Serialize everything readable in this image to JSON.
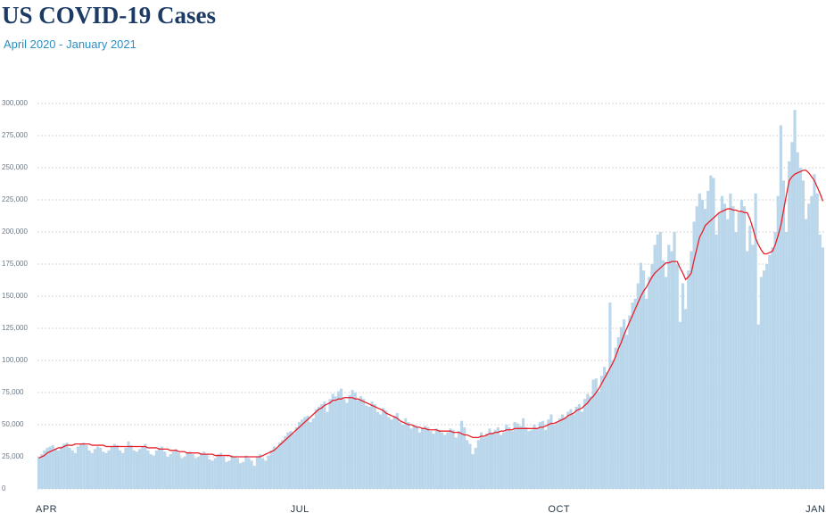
{
  "chart_data": {
    "type": "bar",
    "title": "US COVID-19 Cases",
    "subtitle": "April 2020 - January 2021",
    "categories": [
      "APR",
      null,
      null,
      null,
      null,
      null,
      null,
      null,
      null,
      null,
      null,
      null,
      null,
      null,
      null,
      null,
      null,
      null,
      null,
      null,
      null,
      null,
      null,
      null,
      null,
      null,
      null,
      null,
      null,
      null,
      null,
      null,
      null,
      null,
      null,
      null,
      null,
      null,
      null,
      null,
      null,
      null,
      null,
      null,
      null,
      null,
      null,
      null,
      null,
      null,
      null,
      null,
      null,
      null,
      null,
      null,
      null,
      null,
      null,
      null,
      null,
      null,
      null,
      null,
      null,
      null,
      null,
      null,
      null,
      null,
      null,
      null,
      null,
      null,
      null,
      null,
      null,
      null,
      null,
      null,
      null,
      null,
      null,
      null,
      null,
      null,
      null,
      null,
      null,
      null,
      null,
      "JUL",
      null,
      null,
      null,
      null,
      null,
      null,
      null,
      null,
      null,
      null,
      null,
      null,
      null,
      null,
      null,
      null,
      null,
      null,
      null,
      null,
      null,
      null,
      null,
      null,
      null,
      null,
      null,
      null,
      null,
      null,
      null,
      null,
      null,
      null,
      null,
      null,
      null,
      null,
      null,
      null,
      null,
      null,
      null,
      null,
      null,
      null,
      null,
      null,
      null,
      null,
      null,
      null,
      null,
      null,
      null,
      null,
      null,
      null,
      null,
      null,
      null,
      null,
      null,
      null,
      null,
      null,
      null,
      null,
      null,
      null,
      null,
      null,
      null,
      null,
      null,
      null,
      null,
      null,
      null,
      null,
      null,
      null,
      null,
      null,
      null,
      null,
      null,
      null,
      null,
      null,
      null,
      "OCT",
      null,
      null,
      null,
      null,
      null,
      null,
      null,
      null,
      null,
      null,
      null,
      null,
      null,
      null,
      null,
      null,
      null,
      null,
      null,
      null,
      null,
      null,
      null,
      null,
      null,
      null,
      null,
      null,
      null,
      null,
      null,
      null,
      null,
      null,
      null,
      null,
      null,
      null,
      null,
      null,
      null,
      null,
      null,
      null,
      null,
      null,
      null,
      null,
      null,
      null,
      null,
      null,
      null,
      null,
      null,
      null,
      null,
      null,
      null,
      null,
      null,
      null,
      null,
      null,
      null,
      null,
      null,
      null,
      null,
      null,
      null,
      null,
      null,
      null,
      null,
      null,
      null,
      null,
      null,
      null,
      null,
      null,
      null,
      null,
      null,
      null,
      null,
      null,
      null,
      null,
      null,
      "JAN",
      null,
      null,
      null,
      null,
      null
    ],
    "series": [
      {
        "type": "bar",
        "color": "#bad6ea",
        "values": [
          25000,
          27000,
          30000,
          32000,
          33000,
          34000,
          31000,
          30000,
          33000,
          35000,
          36000,
          32000,
          30000,
          28000,
          33000,
          35000,
          36000,
          34000,
          30000,
          28000,
          31000,
          33000,
          32000,
          29000,
          28000,
          30000,
          33000,
          35000,
          34000,
          30000,
          28000,
          32000,
          37000,
          34000,
          30000,
          29000,
          31000,
          33000,
          35000,
          30000,
          27000,
          26000,
          30000,
          32000,
          33000,
          29000,
          25000,
          27000,
          29000,
          31000,
          28000,
          24000,
          25000,
          28000,
          29000,
          27000,
          24000,
          25000,
          28000,
          29000,
          27000,
          23000,
          22000,
          24000,
          27000,
          28000,
          25000,
          21000,
          22000,
          26000,
          25000,
          24000,
          20000,
          21000,
          26000,
          24000,
          22000,
          18000,
          25000,
          27000,
          24000,
          22000,
          26000,
          30000,
          33000,
          32000,
          36000,
          38000,
          41000,
          44000,
          45000,
          43000,
          48000,
          52000,
          54000,
          56000,
          57000,
          52000,
          55000,
          62000,
          64000,
          66000,
          68000,
          60000,
          70000,
          74000,
          72000,
          76000,
          78000,
          70000,
          67000,
          73000,
          77000,
          75000,
          69000,
          72000,
          70000,
          65000,
          64000,
          68000,
          66000,
          60000,
          58000,
          63000,
          61000,
          56000,
          54000,
          57000,
          59000,
          52000,
          50000,
          55000,
          52000,
          47000,
          50000,
          49000,
          44000,
          47000,
          49000,
          48000,
          45000,
          43000,
          47000,
          46000,
          44000,
          42000,
          44000,
          47000,
          46000,
          40000,
          45000,
          53000,
          48000,
          38000,
          35000,
          27000,
          32000,
          38000,
          44000,
          40000,
          43000,
          47000,
          44000,
          46000,
          48000,
          42000,
          44000,
          50000,
          48000,
          45000,
          52000,
          51000,
          49000,
          55000,
          48000,
          45000,
          46000,
          50000,
          47000,
          52000,
          53000,
          46000,
          54000,
          58000,
          50000,
          52000,
          55000,
          58000,
          56000,
          60000,
          62000,
          58000,
          64000,
          66000,
          60000,
          70000,
          74000,
          72000,
          85000,
          86000,
          76000,
          88000,
          95000,
          91000,
          145000,
          100000,
          110000,
          118000,
          126000,
          132000,
          120000,
          135000,
          145000,
          148000,
          160000,
          176000,
          170000,
          148000,
          165000,
          175000,
          190000,
          198000,
          200000,
          178000,
          165000,
          190000,
          185000,
          200000,
          175000,
          130000,
          160000,
          140000,
          170000,
          185000,
          208000,
          220000,
          230000,
          225000,
          218000,
          232000,
          244000,
          242000,
          198000,
          215000,
          228000,
          222000,
          210000,
          230000,
          220000,
          200000,
          215000,
          225000,
          220000,
          185000,
          205000,
          190000,
          230000,
          128000,
          165000,
          170000,
          175000,
          182000,
          188000,
          200000,
          228000,
          283000,
          240000,
          200000,
          255000,
          270000,
          295000,
          262000,
          250000,
          240000,
          210000,
          222000,
          228000,
          245000,
          230000,
          198000,
          188000
        ]
      },
      {
        "type": "line",
        "color": "#e8202a",
        "values": [
          24000,
          25000,
          26000,
          28000,
          29000,
          30000,
          31000,
          32000,
          32000,
          33000,
          34000,
          34000,
          34000,
          35000,
          35000,
          35000,
          35000,
          35000,
          35000,
          34000,
          34000,
          34000,
          34000,
          34000,
          33000,
          33000,
          33000,
          33000,
          33000,
          33000,
          33000,
          33000,
          33000,
          33000,
          33000,
          33000,
          33000,
          33000,
          33000,
          32000,
          32000,
          32000,
          32000,
          31000,
          31000,
          31000,
          31000,
          30000,
          30000,
          30000,
          29000,
          29000,
          29000,
          28000,
          28000,
          28000,
          28000,
          28000,
          27000,
          27000,
          27000,
          27000,
          27000,
          26000,
          26000,
          26000,
          26000,
          26000,
          26000,
          25000,
          25000,
          25000,
          25000,
          25000,
          25000,
          25000,
          25000,
          25000,
          25000,
          25000,
          26000,
          27000,
          28000,
          29000,
          30000,
          32000,
          34000,
          36000,
          38000,
          40000,
          42000,
          44000,
          46000,
          48000,
          50000,
          52000,
          54000,
          56000,
          58000,
          60000,
          62000,
          63000,
          65000,
          66000,
          67000,
          69000,
          69000,
          70000,
          70000,
          71000,
          71000,
          71000,
          71000,
          70000,
          70000,
          69000,
          68000,
          67000,
          66000,
          65000,
          64000,
          63000,
          62000,
          61000,
          59000,
          58000,
          57000,
          56000,
          55000,
          53000,
          52000,
          51000,
          50000,
          50000,
          49000,
          48000,
          48000,
          47000,
          47000,
          46000,
          46000,
          46000,
          46000,
          45000,
          45000,
          45000,
          45000,
          45000,
          44000,
          44000,
          44000,
          43000,
          42000,
          42000,
          41000,
          40000,
          40000,
          40000,
          41000,
          41000,
          42000,
          43000,
          43000,
          44000,
          44000,
          45000,
          45000,
          46000,
          46000,
          46000,
          47000,
          47000,
          47000,
          47000,
          47000,
          47000,
          47000,
          47000,
          47000,
          48000,
          48000,
          49000,
          50000,
          51000,
          51000,
          52000,
          53000,
          54000,
          55000,
          57000,
          58000,
          59000,
          61000,
          62000,
          63000,
          65000,
          67000,
          70000,
          72000,
          75000,
          78000,
          82000,
          86000,
          90000,
          94000,
          98000,
          103000,
          109000,
          114000,
          120000,
          125000,
          130000,
          135000,
          140000,
          145000,
          150000,
          154000,
          157000,
          161000,
          165000,
          168000,
          170000,
          172000,
          174000,
          176000,
          176000,
          177000,
          177000,
          177000,
          172000,
          168000,
          163000,
          165000,
          168000,
          178000,
          187000,
          196000,
          200000,
          205000,
          207000,
          209000,
          211000,
          213000,
          215000,
          216000,
          217000,
          218000,
          218000,
          217000,
          217000,
          216000,
          216000,
          215000,
          215000,
          210000,
          203000,
          195000,
          190000,
          186000,
          183000,
          183000,
          184000,
          185000,
          190000,
          197000,
          205000,
          217000,
          229000,
          240000,
          243000,
          245000,
          246000,
          247000,
          248000,
          248000,
          246000,
          243000,
          240000,
          235000,
          230000,
          224000
        ]
      }
    ],
    "ylim": [
      0,
      300000
    ],
    "yticks": [
      0,
      {
        "value": 25000,
        "label": "25,000"
      },
      {
        "value": 50000,
        "label": "50,000"
      },
      {
        "value": 75000,
        "label": "75,000"
      },
      {
        "value": 100000,
        "label": "100,000"
      },
      {
        "value": 125000,
        "label": "125,000"
      },
      {
        "value": 150000,
        "label": "150,000"
      },
      {
        "value": 175000,
        "label": "175,000"
      },
      {
        "value": 200000,
        "label": "200,000"
      },
      {
        "value": 225000,
        "label": "225,000"
      },
      {
        "value": 250000,
        "label": "250,000"
      },
      {
        "value": 275000,
        "label": "275,000"
      },
      {
        "value": 300000,
        "label": "300,000"
      }
    ],
    "grid": true
  }
}
